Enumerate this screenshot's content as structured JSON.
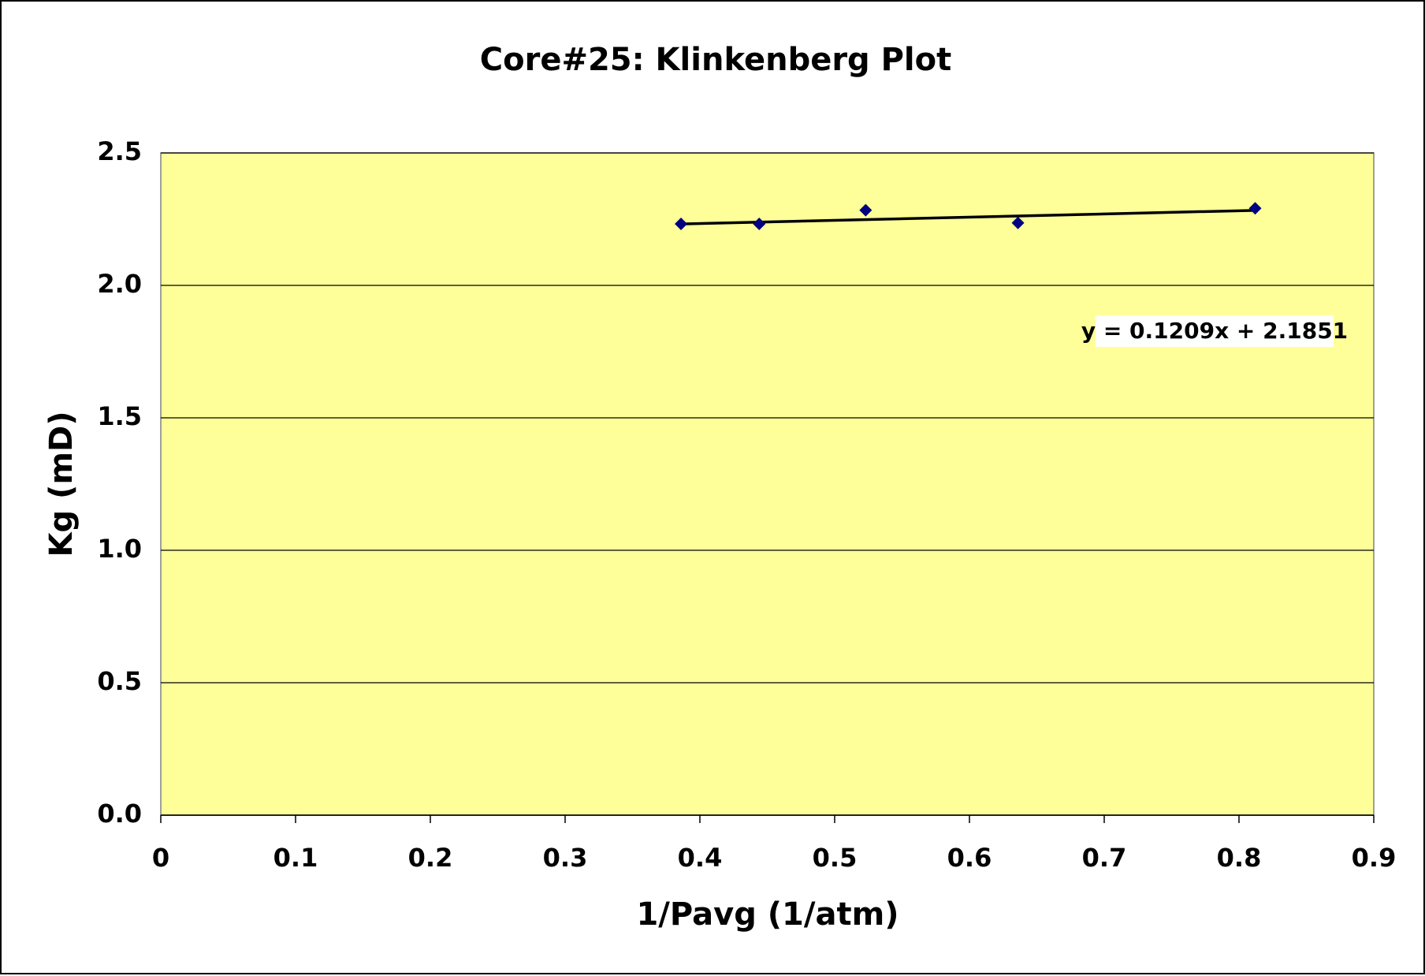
{
  "chart_data": {
    "type": "scatter",
    "title": "Core#25: Klinkenberg Plot",
    "x_label": "1/Pavg (1/atm)",
    "y_label": "Kg (mD)",
    "series": [
      {
        "name": "Kg",
        "color": "#000080",
        "x": [
          0.386,
          0.444,
          0.523,
          0.636,
          0.812
        ],
        "values": [
          2.232,
          2.232,
          2.284,
          2.236,
          2.291
        ]
      }
    ],
    "trendline": {
      "slope": 0.1209,
      "intercept": 2.1851,
      "color": "#000000",
      "label": "y = 0.1209x + 2.1851"
    },
    "xlim": [
      0,
      0.9
    ],
    "xticks": [
      0,
      0.1,
      0.2,
      0.3,
      0.4,
      0.5,
      0.6,
      0.7,
      0.8,
      0.9
    ],
    "ylim": [
      0,
      2.5
    ],
    "yticks": [
      {
        "value": 0,
        "label": "0.0"
      },
      0.5,
      {
        "value": 1,
        "label": "1.0"
      },
      1.5,
      {
        "value": 2,
        "label": "2.0"
      },
      2.5
    ],
    "grid": true,
    "plot_background": "#ffff99"
  }
}
